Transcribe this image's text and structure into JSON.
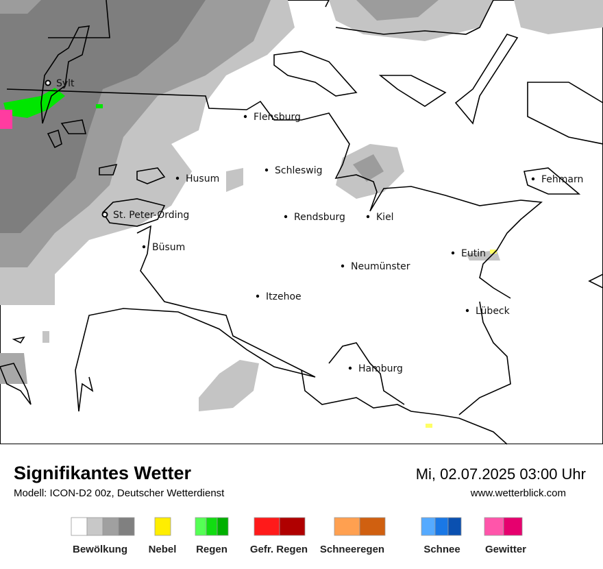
{
  "map": {
    "places": [
      "Sylt",
      "Flensburg",
      "Schleswig",
      "Husum",
      "Fehmarn",
      "St. Peter-Ording",
      "Rendsburg",
      "Kiel",
      "Büsum",
      "Eutin",
      "Neumünster",
      "Itzehoe",
      "Lübeck",
      "Hamburg"
    ]
  },
  "footer": {
    "title": "Signifikantes Wetter",
    "model": "Modell: ICON-D2 00z, Deutscher Wetterdienst",
    "datetime": "Mi, 02.07.2025 03:00 Uhr",
    "url": "www.wetterblick.com"
  },
  "legend": [
    "Bewölkung",
    "Nebel",
    "Regen",
    "Gefr. Regen",
    "Schneeregen",
    "Schnee",
    "Gewitter"
  ]
}
